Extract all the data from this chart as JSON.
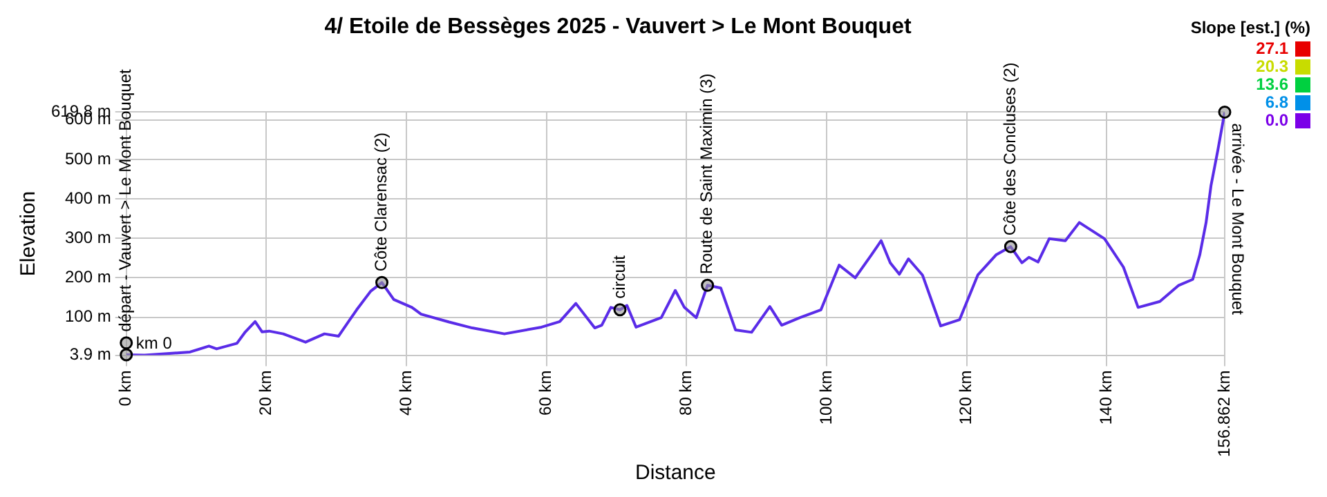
{
  "chart_data": {
    "type": "line",
    "title": "4/ Etoile de Bessèges 2025 - Vauvert > Le Mont Bouquet",
    "xlabel": "Distance",
    "ylabel": "Elevation",
    "xlim": [
      0,
      156.862
    ],
    "xticks": [
      {
        "value": 0,
        "label": "0 km"
      },
      {
        "value": 20,
        "label": "20 km"
      },
      {
        "value": 40,
        "label": "40 km"
      },
      {
        "value": 60,
        "label": "60 km"
      },
      {
        "value": 80,
        "label": "80 km"
      },
      {
        "value": 100,
        "label": "100 km"
      },
      {
        "value": 120,
        "label": "120 km"
      },
      {
        "value": 140,
        "label": "140 km"
      },
      {
        "value": 156.862,
        "label": "156.862 km"
      }
    ],
    "ylim": [
      3.9,
      619.8
    ],
    "yticks": [
      {
        "value": 3.9,
        "label": "3.9 m"
      },
      {
        "value": 100,
        "label": "100 m"
      },
      {
        "value": 200,
        "label": "200 m"
      },
      {
        "value": 300,
        "label": "300 m"
      },
      {
        "value": 400,
        "label": "400 m"
      },
      {
        "value": 500,
        "label": "500 m"
      },
      {
        "value": 600,
        "label": "600 m"
      },
      {
        "value": 619.8,
        "label": "619.8 m"
      }
    ],
    "grid": true,
    "legend": false,
    "series": [
      {
        "color": "#5a2ce8",
        "x": [
          0,
          2.6,
          9.1,
          11.8,
          12.9,
          15.8,
          17,
          18.4,
          19.4,
          20.4,
          22.4,
          25.6,
          28.3,
          30.3,
          32.9,
          34.9,
          36.5,
          38.2,
          40.8,
          42.1,
          46.1,
          49.4,
          54,
          59.3,
          61.9,
          64.2,
          66.9,
          67.9,
          69.2,
          70.5,
          71.5,
          72.8,
          76.4,
          78.4,
          79.7,
          81.4,
          83,
          84.9,
          87,
          89.3,
          91.9,
          93.6,
          96.2,
          99.2,
          101.8,
          104.1,
          106.4,
          107.8,
          109.1,
          110.4,
          111.7,
          113.7,
          116.3,
          119,
          121.6,
          124.2,
          126.3,
          127.9,
          128.9,
          130.2,
          131.8,
          134.1,
          136.1,
          139.7,
          142.4,
          144.5,
          147.6,
          150.3,
          152.3,
          153.3,
          154.2,
          154.9,
          155.9,
          156.862
        ],
        "values": [
          5,
          4,
          12,
          27,
          20,
          34,
          63,
          89,
          63,
          65,
          58,
          37,
          58,
          52,
          119,
          166,
          188,
          145,
          125,
          108,
          88,
          73,
          58,
          75,
          89,
          135,
          73,
          80,
          125,
          119,
          130,
          75,
          99,
          168,
          125,
          99,
          181,
          174,
          68,
          62,
          127,
          80,
          99,
          119,
          232,
          200,
          258,
          294,
          238,
          209,
          248,
          207,
          78,
          94,
          207,
          258,
          279,
          238,
          252,
          240,
          299,
          294,
          340,
          299,
          227,
          125,
          140,
          181,
          196,
          258,
          340,
          433,
          525,
          619.8
        ]
      }
    ],
    "annotations": [
      "Slope [est.] (%)",
      "27.1",
      "20.3",
      "13.6",
      "6.8",
      "0.0",
      {
        "text": "départ - Vauvert > Le Mont Bouquet",
        "x": 0,
        "y": 35
      },
      {
        "text": "km 0",
        "x": 0,
        "y": 5
      },
      {
        "text": "Côte Clarensac (2)",
        "x": 36.5,
        "y": 188
      },
      {
        "text": "circuit",
        "x": 70.5,
        "y": 119
      },
      {
        "text": "Route de Saint Maximin (3)",
        "x": 83,
        "y": 181
      },
      {
        "text": "Côte des Concluses (2)",
        "x": 126.3,
        "y": 279
      },
      {
        "text": "arrivée - Le Mont Bouquet",
        "x": 156.862,
        "y": 619.8
      }
    ]
  }
}
